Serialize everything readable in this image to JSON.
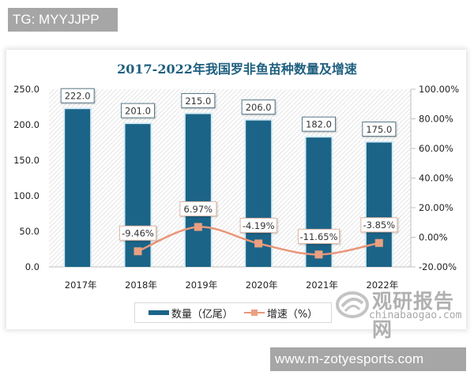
{
  "tags": {
    "top": "TG: MYYJJPP",
    "bottom": "www.m-zotyesports.com"
  },
  "watermark": {
    "cn": "观研报告网",
    "en": "chinabaogao.com"
  },
  "legend": {
    "bar_label": "数量（亿尾）",
    "line_label": "增速（%）"
  },
  "colors": {
    "bar": "#1b6488",
    "line": "#e9967a",
    "marker": "#e9a080",
    "title": "#1f5f7f"
  },
  "chart_data": {
    "type": "bar",
    "title": "2017-2022年我国罗非鱼苗种数量及增速",
    "categories": [
      "2017年",
      "2018年",
      "2019年",
      "2020年",
      "2021年",
      "2022年"
    ],
    "series": [
      {
        "name": "数量（亿尾）",
        "type": "bar",
        "axis": "left",
        "values": [
          222.0,
          201.0,
          215.0,
          206.0,
          182.0,
          175.0
        ],
        "labels": [
          "222.0",
          "201.0",
          "215.0",
          "206.0",
          "182.0",
          "175.0"
        ]
      },
      {
        "name": "增速（%）",
        "type": "line",
        "axis": "right",
        "values": [
          null,
          -9.46,
          6.97,
          -4.19,
          -11.65,
          -3.85
        ],
        "labels": [
          "",
          "-9.46%",
          "6.97%",
          "-4.19%",
          "-11.65%",
          "-3.85%"
        ]
      }
    ],
    "xlabel": "",
    "ylabel": "",
    "ylim": [
      0,
      250
    ],
    "y_ticks": [
      "0.0",
      "50.0",
      "100.0",
      "150.0",
      "200.0",
      "250.0"
    ],
    "y2lim": [
      -20,
      100
    ],
    "y2_ticks": [
      "-20.00%",
      "0.00%",
      "20.00%",
      "40.00%",
      "60.00%",
      "80.00%",
      "100.00%"
    ],
    "legend_position": "bottom",
    "grid": false
  }
}
